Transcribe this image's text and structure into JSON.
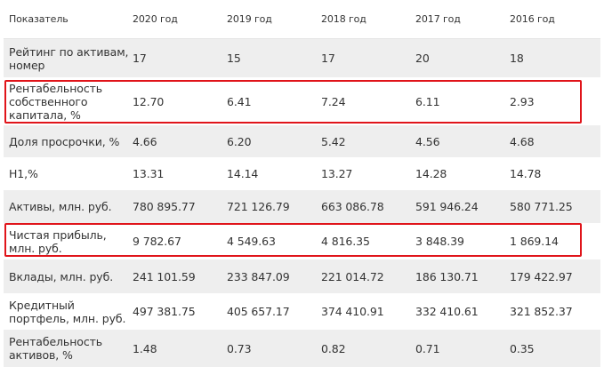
{
  "table": {
    "headers": [
      "Показатель",
      "2020 год",
      "2019 год",
      "2018 год",
      "2017 год",
      "2016 год"
    ],
    "rows": [
      {
        "label": "Рейтинг по активам, номер",
        "values": [
          "17",
          "15",
          "17",
          "20",
          "18"
        ]
      },
      {
        "label": "Рентабельность собственного капитала, %",
        "values": [
          "12.70",
          "6.41",
          "7.24",
          "6.11",
          "2.93"
        ]
      },
      {
        "label": "Доля просрочки, %",
        "values": [
          "4.66",
          "6.20",
          "5.42",
          "4.56",
          "4.68"
        ]
      },
      {
        "label": "Н1,%",
        "values": [
          "13.31",
          "14.14",
          "13.27",
          "14.28",
          "14.78"
        ]
      },
      {
        "label": "Активы, млн. руб.",
        "values": [
          "780 895.77",
          "721 126.79",
          "663 086.78",
          "591 946.24",
          "580 771.25"
        ]
      },
      {
        "label": "Чистая прибыль, млн. руб.",
        "values": [
          "9 782.67",
          "4 549.63",
          "4 816.35",
          "3 848.39",
          "1 869.14"
        ]
      },
      {
        "label": "Вклады, млн. руб.",
        "values": [
          "241 101.59",
          "233 847.09",
          "221 014.72",
          "186 130.71",
          "179 422.97"
        ]
      },
      {
        "label": "Кредитный портфель, млн. руб.",
        "values": [
          "497 381.75",
          "405 657.17",
          "374 410.91",
          "332 410.61",
          "321 852.37"
        ]
      },
      {
        "label": "Рентабельность активов, %",
        "values": [
          "1.48",
          "0.73",
          "0.82",
          "0.71",
          "0.35"
        ]
      }
    ]
  },
  "highlight_color": "#e0141a",
  "shade_color": "#eeeeee"
}
